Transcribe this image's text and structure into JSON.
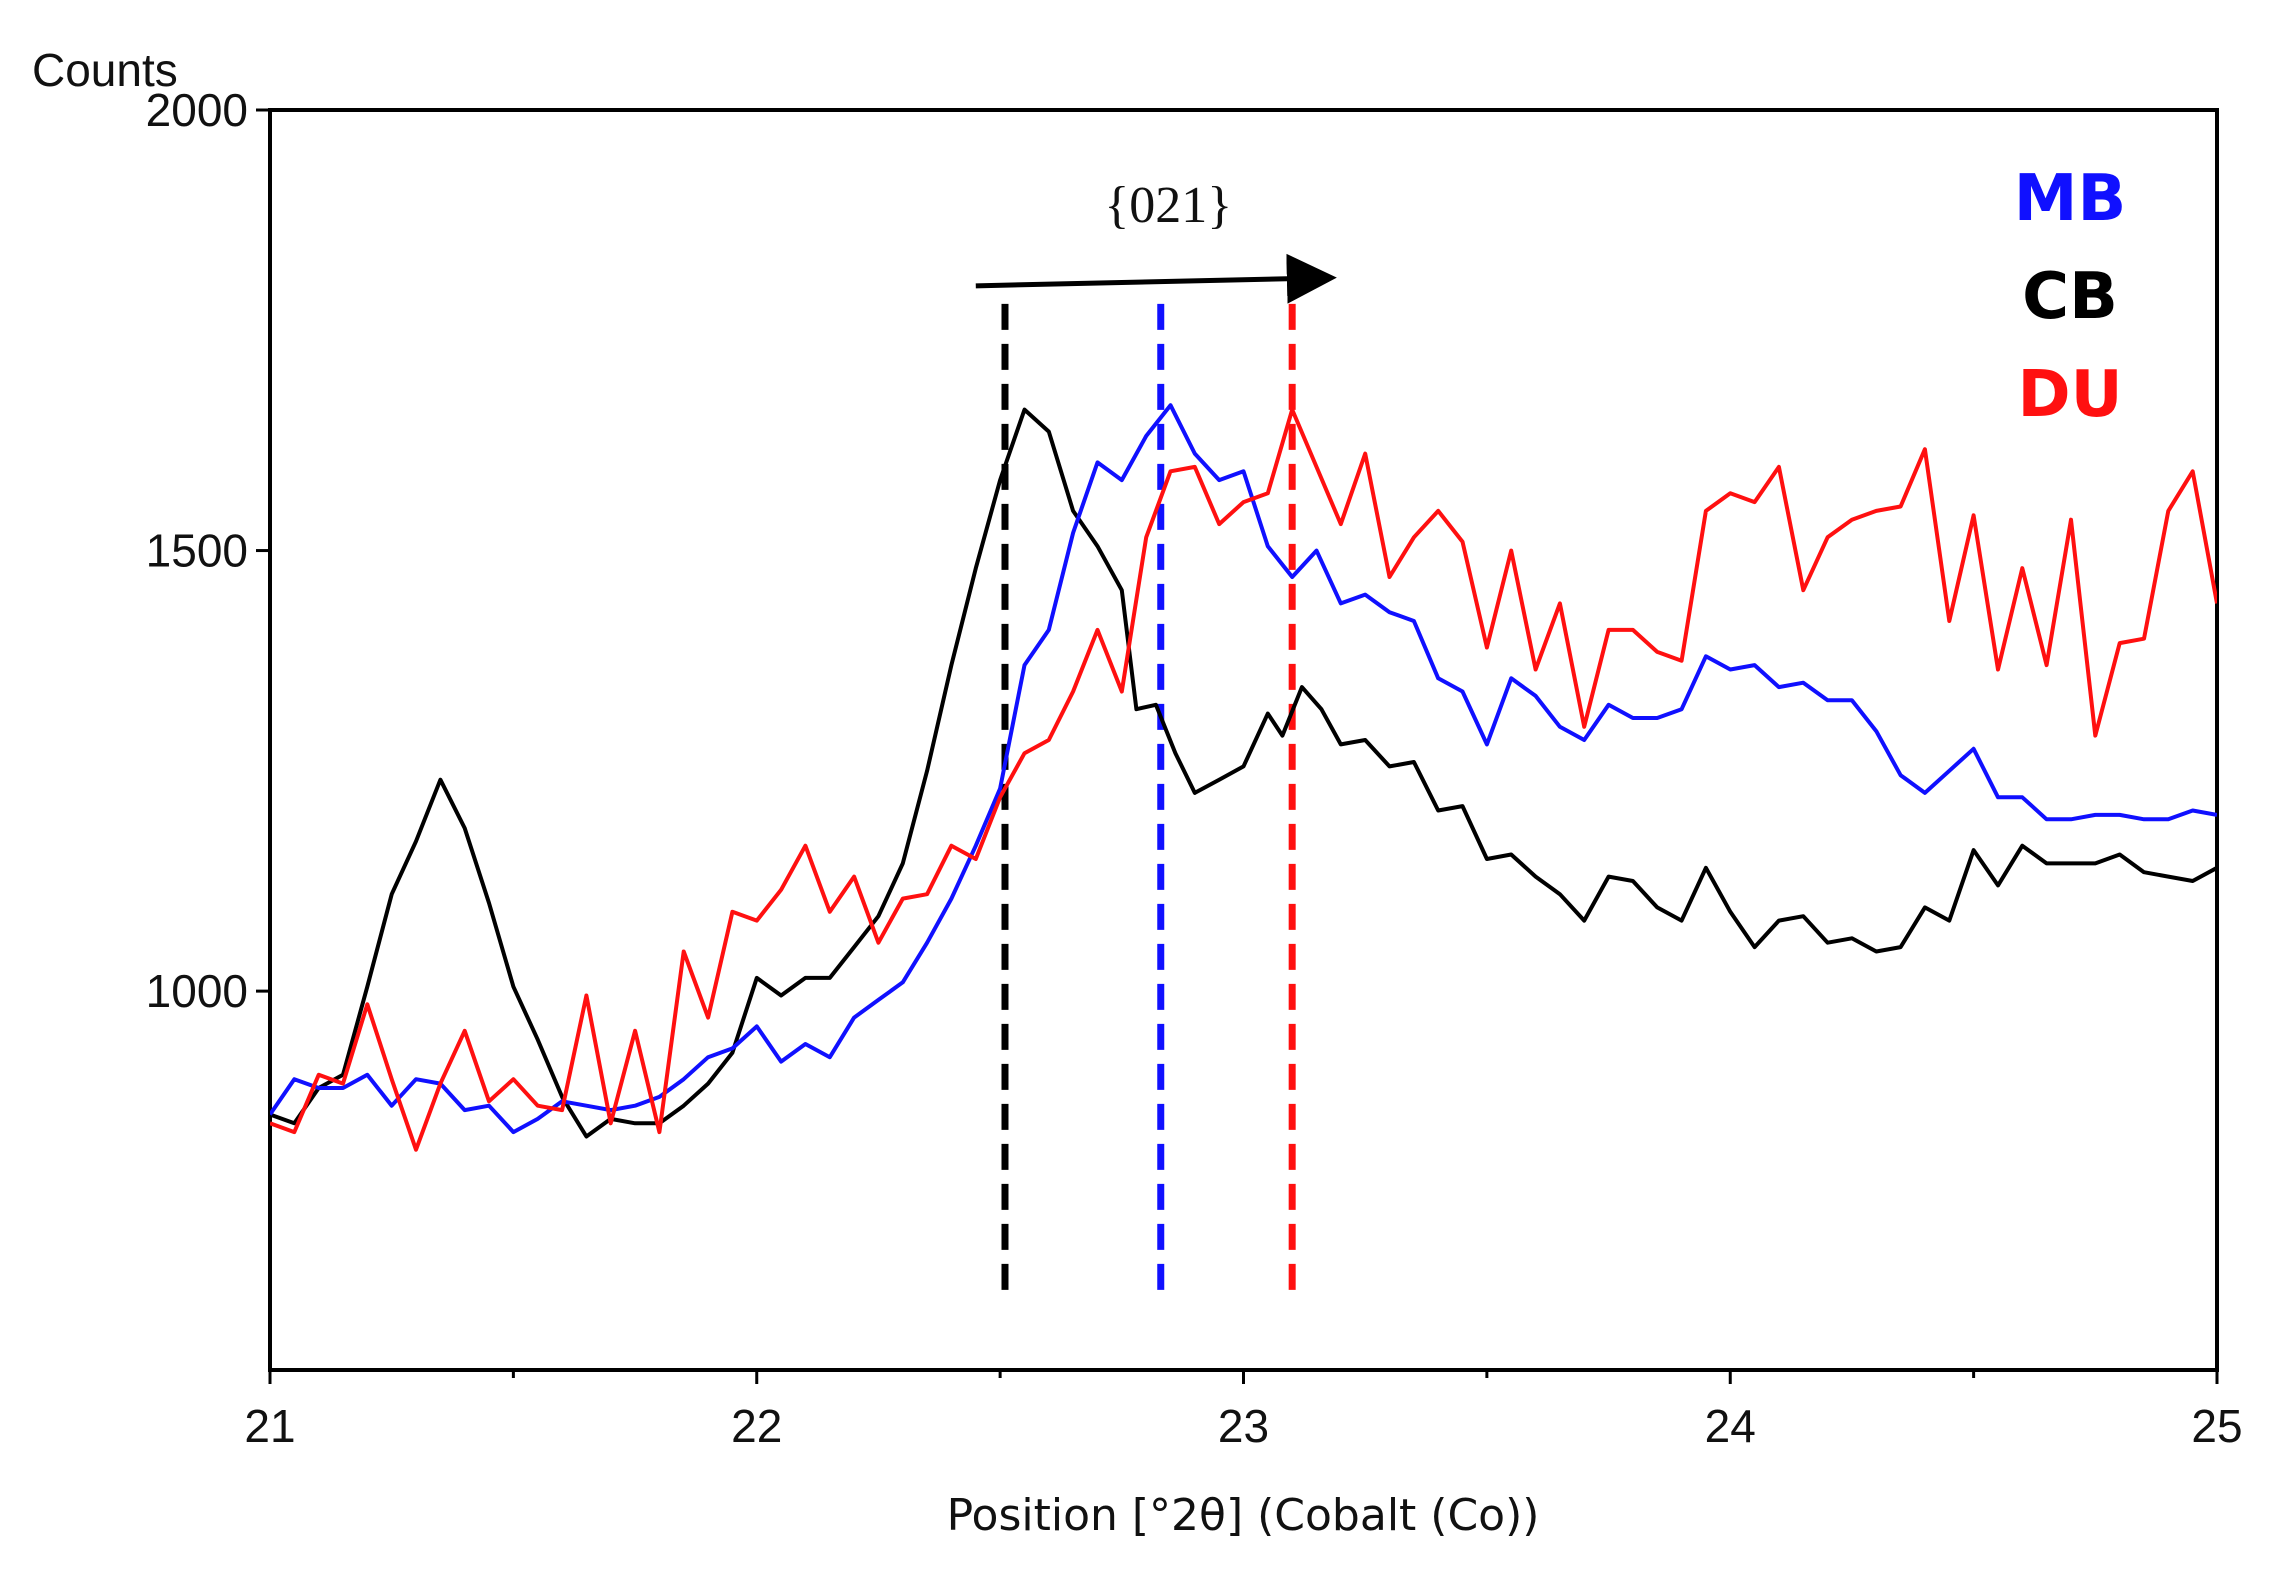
{
  "chart_data": {
    "type": "line",
    "title": "",
    "xlabel": "Position [°2θ] (Cobalt (Co))",
    "ylabel": "Counts",
    "xlim": [
      21,
      25
    ],
    "ylim": [
      570,
      2000
    ],
    "x_ticks": [
      21,
      22,
      23,
      24,
      25
    ],
    "x_tick_labels": [
      "21",
      "22",
      "23",
      "24",
      "25"
    ],
    "x_minor_ticks": [
      21.5,
      22.5,
      23.5,
      24.5
    ],
    "y_ticks": [
      1000,
      1500,
      2000
    ],
    "y_tick_labels": [
      "1000",
      "1500",
      "2000"
    ],
    "grid": false,
    "legend": {
      "placement": "top-right",
      "entries": [
        {
          "name": "MB",
          "color": "#1010ff"
        },
        {
          "name": "CB",
          "color": "#000000"
        },
        {
          "name": "DU",
          "color": "#ff1010"
        }
      ]
    },
    "annotations": {
      "label": "{021}",
      "arrow_from_x": 22.45,
      "arrow_to_x": 23.2,
      "arrow_y": 1805,
      "markers": [
        {
          "series": "CB",
          "x": 22.51,
          "y_top": 1780,
          "y_bottom": 645,
          "color": "#000000"
        },
        {
          "series": "MB",
          "x": 22.83,
          "y_top": 1780,
          "y_bottom": 655,
          "color": "#1010ff"
        },
        {
          "series": "DU",
          "x": 23.1,
          "y_top": 1780,
          "y_bottom": 645,
          "color": "#ff1010"
        }
      ]
    },
    "series": [
      {
        "name": "CB",
        "color": "#000000",
        "points": [
          [
            21.0,
            860
          ],
          [
            21.05,
            850
          ],
          [
            21.1,
            890
          ],
          [
            21.15,
            905
          ],
          [
            21.2,
            1005
          ],
          [
            21.25,
            1110
          ],
          [
            21.3,
            1170
          ],
          [
            21.35,
            1240
          ],
          [
            21.4,
            1185
          ],
          [
            21.45,
            1100
          ],
          [
            21.5,
            1005
          ],
          [
            21.55,
            945
          ],
          [
            21.6,
            880
          ],
          [
            21.65,
            835
          ],
          [
            21.7,
            855
          ],
          [
            21.75,
            850
          ],
          [
            21.8,
            850
          ],
          [
            21.85,
            870
          ],
          [
            21.9,
            895
          ],
          [
            21.95,
            930
          ],
          [
            22.0,
            1015
          ],
          [
            22.05,
            995
          ],
          [
            22.1,
            1015
          ],
          [
            22.15,
            1015
          ],
          [
            22.2,
            1050
          ],
          [
            22.25,
            1085
          ],
          [
            22.3,
            1145
          ],
          [
            22.35,
            1250
          ],
          [
            22.4,
            1370
          ],
          [
            22.45,
            1480
          ],
          [
            22.5,
            1580
          ],
          [
            22.55,
            1660
          ],
          [
            22.6,
            1635
          ],
          [
            22.65,
            1545
          ],
          [
            22.7,
            1505
          ],
          [
            22.75,
            1455
          ],
          [
            22.78,
            1320
          ],
          [
            22.82,
            1325
          ],
          [
            22.86,
            1270
          ],
          [
            22.9,
            1225
          ],
          [
            22.95,
            1240
          ],
          [
            23.0,
            1255
          ],
          [
            23.05,
            1315
          ],
          [
            23.08,
            1290
          ],
          [
            23.12,
            1345
          ],
          [
            23.16,
            1320
          ],
          [
            23.2,
            1280
          ],
          [
            23.25,
            1285
          ],
          [
            23.3,
            1255
          ],
          [
            23.35,
            1260
          ],
          [
            23.4,
            1205
          ],
          [
            23.45,
            1210
          ],
          [
            23.5,
            1150
          ],
          [
            23.55,
            1155
          ],
          [
            23.6,
            1130
          ],
          [
            23.65,
            1110
          ],
          [
            23.7,
            1080
          ],
          [
            23.75,
            1130
          ],
          [
            23.8,
            1125
          ],
          [
            23.85,
            1095
          ],
          [
            23.9,
            1080
          ],
          [
            23.95,
            1140
          ],
          [
            24.0,
            1090
          ],
          [
            24.05,
            1050
          ],
          [
            24.1,
            1080
          ],
          [
            24.15,
            1085
          ],
          [
            24.2,
            1055
          ],
          [
            24.25,
            1060
          ],
          [
            24.3,
            1045
          ],
          [
            24.35,
            1050
          ],
          [
            24.4,
            1095
          ],
          [
            24.45,
            1080
          ],
          [
            24.5,
            1160
          ],
          [
            24.55,
            1120
          ],
          [
            24.6,
            1165
          ],
          [
            24.65,
            1145
          ],
          [
            24.7,
            1145
          ],
          [
            24.75,
            1145
          ],
          [
            24.8,
            1155
          ],
          [
            24.85,
            1135
          ],
          [
            24.9,
            1130
          ],
          [
            24.95,
            1125
          ],
          [
            25.0,
            1140
          ]
        ]
      },
      {
        "name": "MB",
        "color": "#1010ff",
        "points": [
          [
            21.0,
            860
          ],
          [
            21.05,
            900
          ],
          [
            21.1,
            890
          ],
          [
            21.15,
            890
          ],
          [
            21.2,
            905
          ],
          [
            21.25,
            870
          ],
          [
            21.3,
            900
          ],
          [
            21.35,
            895
          ],
          [
            21.4,
            865
          ],
          [
            21.45,
            870
          ],
          [
            21.5,
            840
          ],
          [
            21.55,
            855
          ],
          [
            21.6,
            875
          ],
          [
            21.65,
            870
          ],
          [
            21.7,
            865
          ],
          [
            21.75,
            870
          ],
          [
            21.8,
            880
          ],
          [
            21.85,
            900
          ],
          [
            21.9,
            925
          ],
          [
            21.95,
            935
          ],
          [
            22.0,
            960
          ],
          [
            22.05,
            920
          ],
          [
            22.1,
            940
          ],
          [
            22.15,
            925
          ],
          [
            22.2,
            970
          ],
          [
            22.25,
            990
          ],
          [
            22.3,
            1010
          ],
          [
            22.35,
            1055
          ],
          [
            22.4,
            1105
          ],
          [
            22.45,
            1165
          ],
          [
            22.5,
            1230
          ],
          [
            22.55,
            1370
          ],
          [
            22.6,
            1410
          ],
          [
            22.65,
            1520
          ],
          [
            22.7,
            1600
          ],
          [
            22.75,
            1580
          ],
          [
            22.8,
            1630
          ],
          [
            22.85,
            1665
          ],
          [
            22.9,
            1610
          ],
          [
            22.95,
            1580
          ],
          [
            23.0,
            1590
          ],
          [
            23.05,
            1505
          ],
          [
            23.1,
            1470
          ],
          [
            23.15,
            1500
          ],
          [
            23.2,
            1440
          ],
          [
            23.25,
            1450
          ],
          [
            23.3,
            1430
          ],
          [
            23.35,
            1420
          ],
          [
            23.4,
            1355
          ],
          [
            23.45,
            1340
          ],
          [
            23.5,
            1280
          ],
          [
            23.55,
            1355
          ],
          [
            23.6,
            1335
          ],
          [
            23.65,
            1300
          ],
          [
            23.7,
            1285
          ],
          [
            23.75,
            1325
          ],
          [
            23.8,
            1310
          ],
          [
            23.85,
            1310
          ],
          [
            23.9,
            1320
          ],
          [
            23.95,
            1380
          ],
          [
            24.0,
            1365
          ],
          [
            24.05,
            1370
          ],
          [
            24.1,
            1345
          ],
          [
            24.15,
            1350
          ],
          [
            24.2,
            1330
          ],
          [
            24.25,
            1330
          ],
          [
            24.3,
            1295
          ],
          [
            24.35,
            1245
          ],
          [
            24.4,
            1225
          ],
          [
            24.45,
            1250
          ],
          [
            24.5,
            1275
          ],
          [
            24.55,
            1220
          ],
          [
            24.6,
            1220
          ],
          [
            24.65,
            1195
          ],
          [
            24.7,
            1195
          ],
          [
            24.75,
            1200
          ],
          [
            24.8,
            1200
          ],
          [
            24.85,
            1195
          ],
          [
            24.9,
            1195
          ],
          [
            24.95,
            1205
          ],
          [
            25.0,
            1200
          ]
        ]
      },
      {
        "name": "DU",
        "color": "#ff1010",
        "points": [
          [
            21.0,
            850
          ],
          [
            21.05,
            840
          ],
          [
            21.1,
            905
          ],
          [
            21.15,
            895
          ],
          [
            21.2,
            985
          ],
          [
            21.25,
            900
          ],
          [
            21.3,
            820
          ],
          [
            21.35,
            895
          ],
          [
            21.4,
            955
          ],
          [
            21.45,
            875
          ],
          [
            21.5,
            900
          ],
          [
            21.55,
            870
          ],
          [
            21.6,
            865
          ],
          [
            21.65,
            995
          ],
          [
            21.7,
            850
          ],
          [
            21.75,
            955
          ],
          [
            21.8,
            840
          ],
          [
            21.85,
            1045
          ],
          [
            21.9,
            970
          ],
          [
            21.95,
            1090
          ],
          [
            22.0,
            1080
          ],
          [
            22.05,
            1115
          ],
          [
            22.1,
            1165
          ],
          [
            22.15,
            1090
          ],
          [
            22.2,
            1130
          ],
          [
            22.25,
            1055
          ],
          [
            22.3,
            1105
          ],
          [
            22.35,
            1110
          ],
          [
            22.4,
            1165
          ],
          [
            22.45,
            1150
          ],
          [
            22.5,
            1220
          ],
          [
            22.55,
            1270
          ],
          [
            22.6,
            1285
          ],
          [
            22.65,
            1340
          ],
          [
            22.7,
            1410
          ],
          [
            22.75,
            1340
          ],
          [
            22.8,
            1515
          ],
          [
            22.85,
            1590
          ],
          [
            22.9,
            1595
          ],
          [
            22.95,
            1530
          ],
          [
            23.0,
            1555
          ],
          [
            23.05,
            1565
          ],
          [
            23.1,
            1660
          ],
          [
            23.15,
            1595
          ],
          [
            23.2,
            1530
          ],
          [
            23.25,
            1610
          ],
          [
            23.3,
            1470
          ],
          [
            23.35,
            1515
          ],
          [
            23.4,
            1545
          ],
          [
            23.45,
            1510
          ],
          [
            23.5,
            1390
          ],
          [
            23.55,
            1500
          ],
          [
            23.6,
            1365
          ],
          [
            23.65,
            1440
          ],
          [
            23.7,
            1300
          ],
          [
            23.75,
            1410
          ],
          [
            23.8,
            1410
          ],
          [
            23.85,
            1385
          ],
          [
            23.9,
            1375
          ],
          [
            23.95,
            1545
          ],
          [
            24.0,
            1565
          ],
          [
            24.05,
            1555
          ],
          [
            24.1,
            1595
          ],
          [
            24.15,
            1455
          ],
          [
            24.2,
            1515
          ],
          [
            24.25,
            1535
          ],
          [
            24.3,
            1545
          ],
          [
            24.35,
            1550
          ],
          [
            24.4,
            1615
          ],
          [
            24.45,
            1420
          ],
          [
            24.5,
            1540
          ],
          [
            24.55,
            1365
          ],
          [
            24.6,
            1480
          ],
          [
            24.65,
            1370
          ],
          [
            24.7,
            1535
          ],
          [
            24.75,
            1290
          ],
          [
            24.8,
            1395
          ],
          [
            24.85,
            1400
          ],
          [
            24.9,
            1545
          ],
          [
            24.95,
            1590
          ],
          [
            25.0,
            1440
          ]
        ]
      }
    ]
  }
}
